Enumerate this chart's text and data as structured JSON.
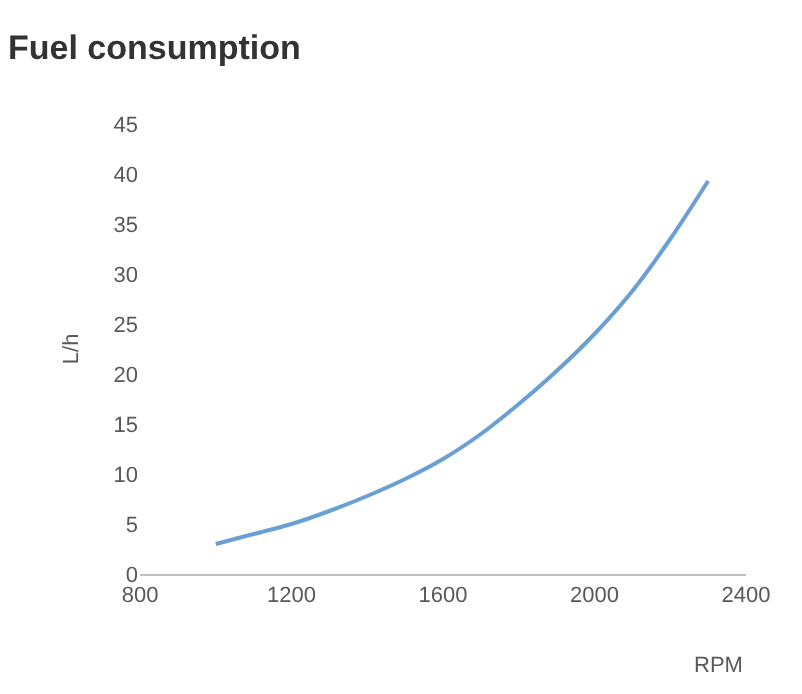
{
  "chart_data": {
    "type": "line",
    "title": "Fuel consumption",
    "xlabel": "RPM",
    "ylabel": "L/h",
    "x": [
      1000,
      1100,
      1200,
      1300,
      1400,
      1500,
      1600,
      1700,
      1800,
      1900,
      2000,
      2100,
      2200,
      2300
    ],
    "series": [
      {
        "color": "#6a9fd4",
        "values": [
          3,
          4,
          5,
          6.3,
          7.8,
          9.5,
          11.5,
          14,
          17,
          20.3,
          24,
          28.3,
          33.5,
          39.3
        ]
      }
    ],
    "xlim": [
      800,
      2400
    ],
    "xticks": [
      800,
      1200,
      1600,
      2000,
      2400
    ],
    "ylim": [
      0,
      45
    ],
    "yticks": [
      0,
      5,
      10,
      15,
      20,
      25,
      30,
      35,
      40,
      45
    ],
    "grid": false,
    "marker": "none",
    "line_style": "solid"
  }
}
